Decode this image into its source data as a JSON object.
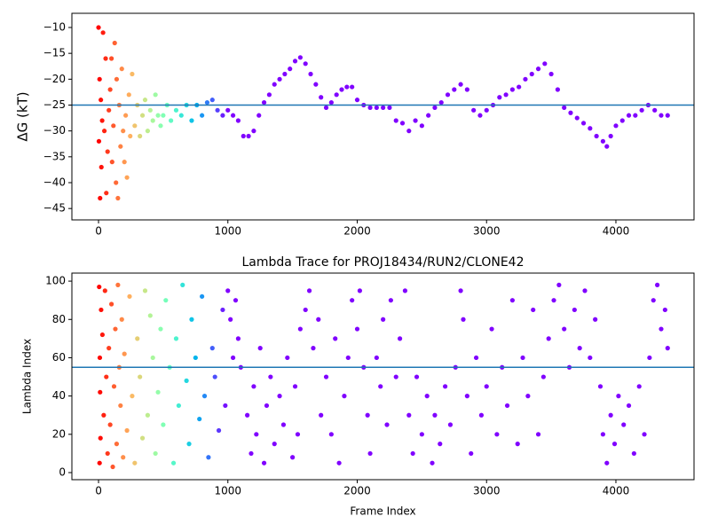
{
  "chart_data": [
    {
      "type": "scatter",
      "ylabel": "ΔG (kT)",
      "x": [
        0,
        3,
        8,
        12,
        18,
        22,
        28,
        35,
        45,
        55,
        60,
        70,
        80,
        90,
        100,
        105,
        115,
        125,
        135,
        140,
        150,
        160,
        170,
        180,
        190,
        200,
        210,
        220,
        235,
        245,
        260,
        280,
        300,
        320,
        340,
        360,
        380,
        400,
        420,
        440,
        460,
        480,
        500,
        530,
        560,
        600,
        640,
        680,
        720,
        760,
        800,
        840,
        880,
        920,
        960,
        1000,
        1040,
        1080,
        1120,
        1160,
        1200,
        1240,
        1280,
        1320,
        1360,
        1400,
        1440,
        1480,
        1520,
        1560,
        1600,
        1640,
        1680,
        1720,
        1760,
        1800,
        1840,
        1880,
        1920,
        1960,
        2000,
        2050,
        2100,
        2150,
        2200,
        2250,
        2300,
        2350,
        2400,
        2450,
        2500,
        2550,
        2600,
        2650,
        2700,
        2750,
        2800,
        2850,
        2900,
        2950,
        3000,
        3050,
        3100,
        3150,
        3200,
        3250,
        3300,
        3350,
        3400,
        3450,
        3500,
        3550,
        3600,
        3650,
        3700,
        3750,
        3800,
        3850,
        3900,
        3930,
        3960,
        4000,
        4050,
        4100,
        4150,
        4200,
        4250,
        4300,
        4350,
        4400
      ],
      "values": [
        -10,
        -32,
        -20,
        -43,
        -24,
        -37,
        -28,
        -11,
        -30,
        -16,
        -42,
        -34,
        -26,
        -22,
        -16,
        -36,
        -29,
        -13,
        -40,
        -20,
        -43,
        -25,
        -33,
        -18,
        -30,
        -36,
        -27,
        -39,
        -23,
        -31,
        -19,
        -29,
        -25,
        -31,
        -27,
        -24,
        -30,
        -26,
        -28,
        -23,
        -27,
        -29,
        -27,
        -25,
        -28,
        -26,
        -27,
        -25,
        -28,
        -25,
        -27,
        -24.5,
        -24,
        -26,
        -27,
        -26,
        -27,
        -28,
        -31,
        -31,
        -30,
        -27,
        -24.5,
        -23,
        -21,
        -20,
        -19,
        -18,
        -16.5,
        -15.8,
        -17,
        -19,
        -21,
        -23.5,
        -25.5,
        -24.5,
        -23,
        -22,
        -21.5,
        -21.5,
        -24,
        -25,
        -25.5,
        -25.5,
        -25.5,
        -25.5,
        -28,
        -28.5,
        -30,
        -28,
        -29,
        -27,
        -25.5,
        -24.5,
        -23,
        -22,
        -21,
        -22,
        -26,
        -27,
        -26,
        -25,
        -23.5,
        -23,
        -22,
        -21.5,
        -20,
        -19,
        -18,
        -17,
        -19,
        -22,
        -25.5,
        -26.5,
        -27.5,
        -28.5,
        -29.5,
        -31,
        -32,
        -33,
        -31,
        -29,
        -28,
        -27,
        -27,
        -26,
        -25,
        -26,
        -27,
        -27
      ],
      "colormap": "rainbow_r",
      "clim": [
        0,
        1000
      ],
      "hline": -25,
      "hline_color": "#1f77b4",
      "xlim": [
        -206,
        4604
      ],
      "xticks": [
        0,
        1000,
        2000,
        3000,
        4000
      ],
      "ylim": [
        -47.2,
        -7.26
      ],
      "yticks": [
        {
          "value": -45,
          "label": "−45"
        },
        {
          "value": -40,
          "label": "−40"
        },
        {
          "value": -35,
          "label": "−35"
        },
        {
          "value": -30,
          "label": "−30"
        },
        {
          "value": -25,
          "label": "−25"
        },
        {
          "value": -20,
          "label": "−20"
        },
        {
          "value": -15,
          "label": "−15"
        },
        {
          "value": -10,
          "label": "−10"
        }
      ]
    },
    {
      "type": "scatter",
      "title": "Lambda Trace for PROJ18434/RUN2/CLONE42",
      "xlabel": "Frame Index",
      "ylabel": "Lambda Index",
      "x": [
        5,
        8,
        10,
        12,
        15,
        20,
        30,
        40,
        50,
        60,
        70,
        80,
        90,
        100,
        110,
        120,
        130,
        140,
        150,
        160,
        170,
        180,
        190,
        200,
        220,
        240,
        260,
        280,
        300,
        320,
        340,
        360,
        380,
        400,
        420,
        440,
        460,
        480,
        500,
        520,
        550,
        580,
        600,
        620,
        650,
        680,
        700,
        720,
        750,
        780,
        800,
        820,
        850,
        880,
        900,
        930,
        960,
        980,
        1000,
        1020,
        1040,
        1060,
        1080,
        1100,
        1150,
        1180,
        1200,
        1220,
        1250,
        1280,
        1300,
        1330,
        1360,
        1400,
        1430,
        1460,
        1500,
        1520,
        1540,
        1560,
        1600,
        1630,
        1660,
        1700,
        1720,
        1760,
        1800,
        1830,
        1860,
        1900,
        1930,
        1960,
        2000,
        2020,
        2050,
        2080,
        2100,
        2150,
        2180,
        2200,
        2230,
        2260,
        2300,
        2330,
        2370,
        2400,
        2430,
        2460,
        2500,
        2540,
        2580,
        2600,
        2640,
        2680,
        2720,
        2760,
        2800,
        2820,
        2850,
        2880,
        2920,
        2960,
        3000,
        3040,
        3080,
        3120,
        3160,
        3200,
        3240,
        3280,
        3320,
        3360,
        3400,
        3440,
        3480,
        3520,
        3560,
        3600,
        3640,
        3680,
        3720,
        3760,
        3800,
        3840,
        3880,
        3900,
        3930,
        3960,
        3990,
        4020,
        4060,
        4100,
        4140,
        4180,
        4220,
        4260,
        4290,
        4320,
        4350,
        4380,
        4400
      ],
      "values": [
        97,
        5,
        60,
        42,
        18,
        85,
        72,
        30,
        95,
        50,
        10,
        65,
        25,
        88,
        3,
        45,
        75,
        15,
        98,
        55,
        35,
        80,
        8,
        62,
        22,
        92,
        40,
        5,
        70,
        50,
        18,
        95,
        30,
        82,
        60,
        10,
        42,
        75,
        25,
        90,
        55,
        5,
        70,
        35,
        98,
        48,
        15,
        80,
        60,
        28,
        92,
        40,
        8,
        65,
        50,
        22,
        85,
        35,
        95,
        80,
        60,
        90,
        70,
        55,
        30,
        10,
        45,
        20,
        65,
        5,
        35,
        50,
        15,
        40,
        25,
        60,
        8,
        45,
        20,
        75,
        85,
        95,
        65,
        80,
        30,
        50,
        20,
        70,
        5,
        40,
        60,
        90,
        75,
        95,
        55,
        30,
        10,
        60,
        45,
        80,
        25,
        90,
        50,
        70,
        95,
        30,
        10,
        50,
        20,
        40,
        5,
        30,
        15,
        45,
        25,
        55,
        95,
        80,
        40,
        10,
        60,
        30,
        45,
        75,
        20,
        55,
        35,
        90,
        15,
        60,
        40,
        85,
        20,
        50,
        70,
        90,
        98,
        75,
        55,
        85,
        65,
        95,
        60,
        80,
        45,
        20,
        5,
        30,
        15,
        40,
        25,
        35,
        10,
        45,
        20,
        60,
        90,
        98,
        75,
        85,
        65
      ],
      "colormap": "rainbow_r",
      "clim": [
        0,
        1000
      ],
      "hline": 55,
      "hline_color": "#1f77b4",
      "xlim": [
        -206,
        4604
      ],
      "xticks": [
        0,
        1000,
        2000,
        3000,
        4000
      ],
      "ylim": [
        -3.7,
        104.2
      ],
      "yticks": [
        0,
        20,
        40,
        60,
        80,
        100
      ]
    }
  ]
}
